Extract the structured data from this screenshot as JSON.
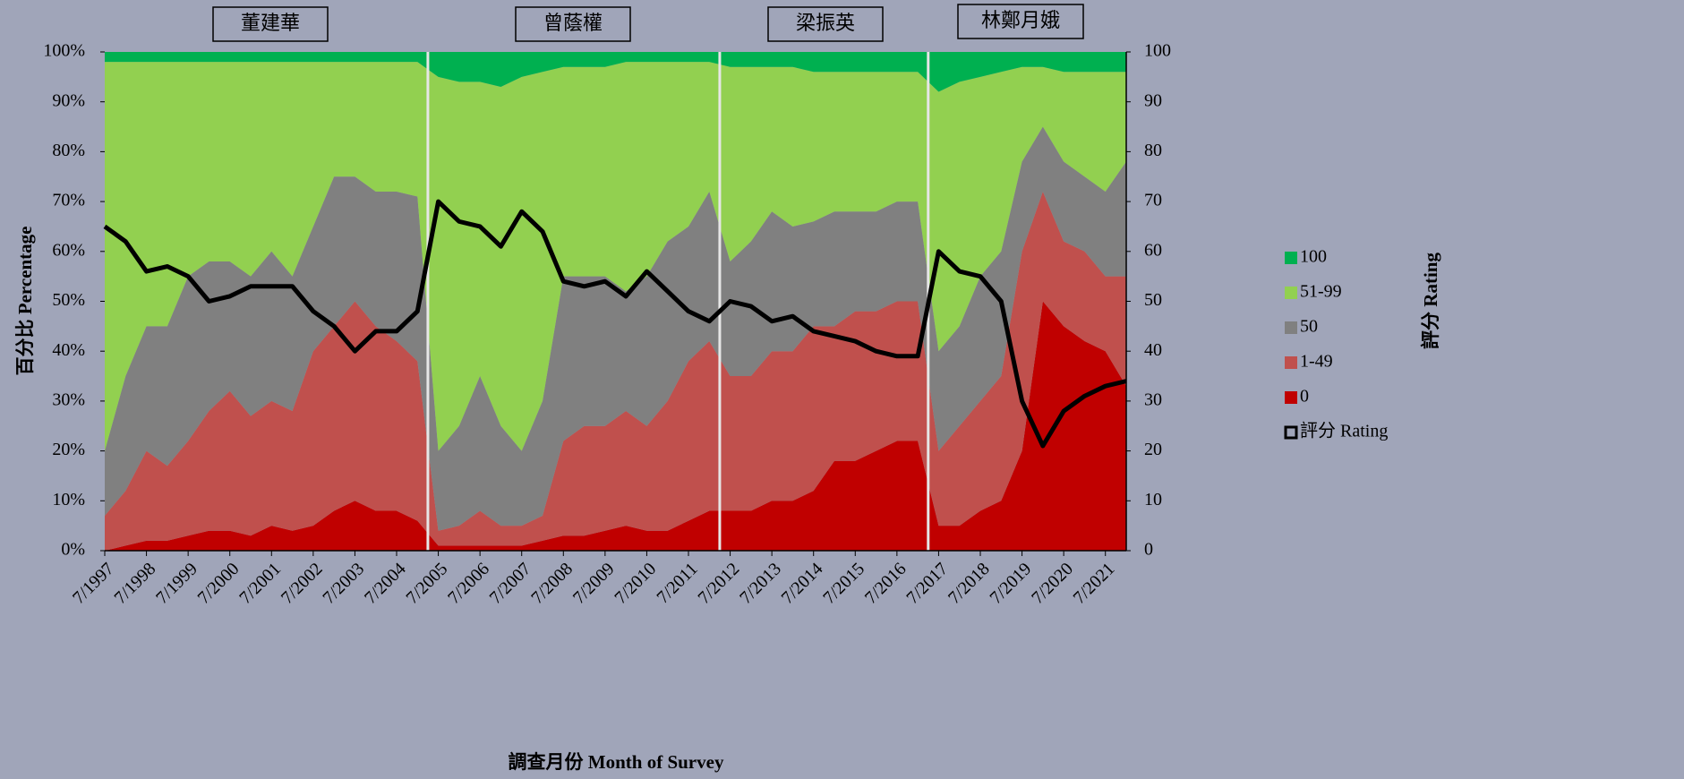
{
  "chart_data": {
    "type": "area",
    "x_label": "調查月份 Month of Survey",
    "y_label": "百分比 Percentage",
    "y2_label": "評分 Rating",
    "annotations": [
      "董建華",
      "曾蔭權",
      "梁振英",
      "林鄭月娥"
    ],
    "categories": [
      "7/1997",
      null,
      "7/1998",
      null,
      "7/1999",
      null,
      "7/2000",
      null,
      "7/2001",
      null,
      "7/2002",
      null,
      "7/2003",
      null,
      "7/2004",
      null,
      "7/2005",
      null,
      "7/2006",
      null,
      "7/2007",
      null,
      "7/2008",
      null,
      "7/2009",
      null,
      "7/2010",
      null,
      "7/2011",
      null,
      "7/2012",
      null,
      "7/2013",
      null,
      "7/2014",
      null,
      "7/2015",
      null,
      "7/2016",
      null,
      "7/2017",
      null,
      "7/2018",
      null,
      "7/2019",
      null,
      "7/2020",
      null,
      "7/2021",
      null
    ],
    "ylim": [
      0,
      100
    ],
    "yticks": [
      {
        "value": 0,
        "label": "0%"
      },
      {
        "value": 10,
        "label": "10%"
      },
      {
        "value": 20,
        "label": "20%"
      },
      {
        "value": 30,
        "label": "30%"
      },
      {
        "value": 40,
        "label": "40%"
      },
      {
        "value": 50,
        "label": "50%"
      },
      {
        "value": 60,
        "label": "60%"
      },
      {
        "value": 70,
        "label": "70%"
      },
      {
        "value": 80,
        "label": "80%"
      },
      {
        "value": 90,
        "label": "90%"
      },
      {
        "value": 100,
        "label": "100%"
      }
    ],
    "y2lim": [
      0,
      100
    ],
    "y2ticks": [
      0,
      10,
      20,
      30,
      40,
      50,
      60,
      70,
      80,
      90,
      100
    ],
    "legend": "right",
    "series": [
      {
        "name": "0",
        "color": "#c00000",
        "values": [
          0,
          1,
          2,
          2,
          3,
          4,
          4,
          3,
          5,
          4,
          5,
          8,
          10,
          8,
          8,
          6,
          1,
          1,
          1,
          1,
          1,
          2,
          3,
          3,
          4,
          5,
          4,
          4,
          6,
          8,
          8,
          8,
          10,
          10,
          12,
          18,
          18,
          20,
          22,
          22,
          5,
          5,
          8,
          10,
          20,
          50,
          45,
          42,
          40,
          33
        ]
      },
      {
        "name": "1-49",
        "color": "#c0504d",
        "values": [
          7,
          11,
          18,
          15,
          19,
          24,
          28,
          24,
          25,
          24,
          35,
          37,
          40,
          37,
          34,
          32,
          3,
          4,
          7,
          4,
          4,
          5,
          19,
          22,
          21,
          23,
          21,
          26,
          32,
          34,
          27,
          27,
          30,
          30,
          33,
          27,
          30,
          28,
          28,
          28,
          15,
          20,
          22,
          25,
          40,
          22,
          17,
          18,
          15,
          22
        ]
      },
      {
        "name": "50",
        "color": "#808080",
        "values": [
          13,
          23,
          25,
          28,
          33,
          30,
          26,
          28,
          30,
          27,
          25,
          30,
          25,
          27,
          30,
          33,
          16,
          20,
          27,
          20,
          15,
          23,
          33,
          30,
          30,
          24,
          30,
          32,
          27,
          30,
          23,
          27,
          28,
          25,
          21,
          23,
          20,
          20,
          20,
          20,
          20,
          20,
          25,
          25,
          18,
          13,
          16,
          15,
          17,
          23
        ]
      },
      {
        "name": "51-99",
        "color": "#92d050",
        "values": [
          78,
          63,
          53,
          53,
          43,
          40,
          40,
          43,
          38,
          43,
          33,
          23,
          23,
          26,
          26,
          27,
          75,
          69,
          59,
          68,
          75,
          66,
          42,
          42,
          42,
          46,
          43,
          36,
          33,
          26,
          39,
          35,
          29,
          32,
          30,
          28,
          28,
          28,
          26,
          26,
          52,
          49,
          40,
          36,
          19,
          12,
          18,
          21,
          24,
          18
        ]
      },
      {
        "name": "100",
        "color": "#00b050",
        "values": [
          2,
          2,
          2,
          2,
          2,
          2,
          2,
          2,
          2,
          2,
          2,
          2,
          2,
          2,
          2,
          2,
          5,
          6,
          6,
          7,
          5,
          4,
          3,
          3,
          3,
          2,
          2,
          2,
          2,
          2,
          3,
          3,
          3,
          3,
          4,
          4,
          4,
          4,
          4,
          4,
          8,
          6,
          5,
          4,
          3,
          3,
          4,
          4,
          4,
          4
        ]
      },
      {
        "name": "評分 Rating",
        "type": "line",
        "axis": "y2",
        "color": "#000000",
        "values": [
          65,
          62,
          56,
          57,
          55,
          50,
          51,
          53,
          53,
          53,
          48,
          45,
          40,
          44,
          44,
          48,
          70,
          66,
          65,
          61,
          68,
          64,
          54,
          53,
          54,
          51,
          56,
          52,
          48,
          46,
          50,
          49,
          46,
          47,
          44,
          43,
          42,
          40,
          39,
          39,
          60,
          56,
          55,
          50,
          30,
          21,
          28,
          31,
          33,
          34
        ]
      }
    ]
  }
}
